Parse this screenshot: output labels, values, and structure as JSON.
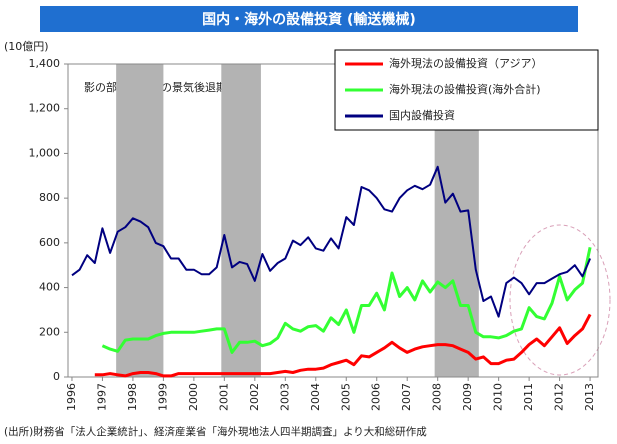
{
  "chart_data": {
    "type": "line",
    "title": "国内・海外の設備投資 (輸送機械)",
    "y_unit": "(10億円)",
    "annotation": "影の部分は日本の景気後退期",
    "source": "(出所)財務省「法人企業統計」、経済産業省「海外現地法人四半期調査」より大和総研作成",
    "x": [
      1996,
      1996.25,
      1996.5,
      1996.75,
      1997,
      1997.25,
      1997.5,
      1997.75,
      1998,
      1998.25,
      1998.5,
      1998.75,
      1999,
      1999.25,
      1999.5,
      1999.75,
      2000,
      2000.25,
      2000.5,
      2000.75,
      2001,
      2001.25,
      2001.5,
      2001.75,
      2002,
      2002.25,
      2002.5,
      2002.75,
      2003,
      2003.25,
      2003.5,
      2003.75,
      2004,
      2004.25,
      2004.5,
      2004.75,
      2005,
      2005.25,
      2005.5,
      2005.75,
      2006,
      2006.25,
      2006.5,
      2006.75,
      2007,
      2007.25,
      2007.5,
      2007.75,
      2008,
      2008.25,
      2008.5,
      2008.75,
      2009,
      2009.25,
      2009.5,
      2009.75,
      2010,
      2010.25,
      2010.5,
      2010.75,
      2011,
      2011.25,
      2011.5,
      2011.75,
      2012,
      2012.25,
      2012.5,
      2012.75,
      2013
    ],
    "series": [
      {
        "name": "海外現法の設備投資（アジア）",
        "color": "#ff0000",
        "values": [
          null,
          null,
          null,
          10,
          10,
          15,
          10,
          5,
          15,
          20,
          20,
          15,
          5,
          5,
          15,
          15,
          15,
          15,
          15,
          15,
          15,
          15,
          15,
          15,
          15,
          15,
          15,
          20,
          25,
          20,
          30,
          35,
          35,
          40,
          55,
          65,
          75,
          55,
          95,
          90,
          110,
          130,
          155,
          130,
          110,
          125,
          135,
          140,
          145,
          145,
          140,
          125,
          110,
          80,
          90,
          60,
          60,
          75,
          80,
          110,
          145,
          170,
          140,
          180,
          220,
          150,
          185,
          215,
          280
        ]
      },
      {
        "name": "海外現法の設備投資(海外合計)",
        "color": "#33ff33",
        "values": [
          null,
          null,
          null,
          null,
          140,
          125,
          115,
          165,
          170,
          170,
          170,
          185,
          195,
          200,
          200,
          200,
          200,
          205,
          210,
          215,
          215,
          110,
          155,
          155,
          160,
          140,
          150,
          175,
          240,
          215,
          205,
          225,
          230,
          205,
          265,
          235,
          300,
          200,
          320,
          320,
          375,
          300,
          465,
          360,
          400,
          345,
          430,
          380,
          425,
          400,
          430,
          320,
          320,
          200,
          180,
          180,
          175,
          185,
          205,
          215,
          310,
          270,
          260,
          330,
          450,
          345,
          390,
          420,
          580
        ]
      },
      {
        "name": "国内設備投資",
        "color": "#000080",
        "values": [
          455,
          480,
          545,
          510,
          665,
          555,
          650,
          670,
          710,
          695,
          670,
          600,
          585,
          530,
          530,
          480,
          480,
          460,
          460,
          490,
          635,
          490,
          515,
          505,
          430,
          550,
          475,
          510,
          530,
          610,
          590,
          625,
          575,
          565,
          620,
          575,
          715,
          680,
          850,
          835,
          800,
          750,
          740,
          800,
          835,
          855,
          840,
          860,
          940,
          780,
          820,
          740,
          745,
          480,
          340,
          360,
          270,
          420,
          445,
          420,
          370,
          420,
          420,
          440,
          460,
          470,
          500,
          450,
          530
        ]
      }
    ],
    "recessions": [
      [
        1997.45,
        1999.0
      ],
      [
        2000.9,
        2002.2
      ],
      [
        2007.9,
        2009.35
      ]
    ],
    "recession_color": "#b3b3b3",
    "xlim": [
      1995.87,
      2013.26
    ],
    "xticks": [
      1996,
      1997,
      1998,
      1999,
      2000,
      2001,
      2002,
      2003,
      2004,
      2005,
      2006,
      2007,
      2008,
      2009,
      2010,
      2011,
      2012,
      2013
    ],
    "ylim": [
      0,
      1400
    ],
    "yticks": [
      0,
      200,
      400,
      600,
      800,
      {
        "value": 1000,
        "label": "1,000"
      },
      {
        "value": 1200,
        "label": "1,200"
      },
      {
        "value": 1400,
        "label": "1,400"
      }
    ],
    "legend": "top-right"
  }
}
